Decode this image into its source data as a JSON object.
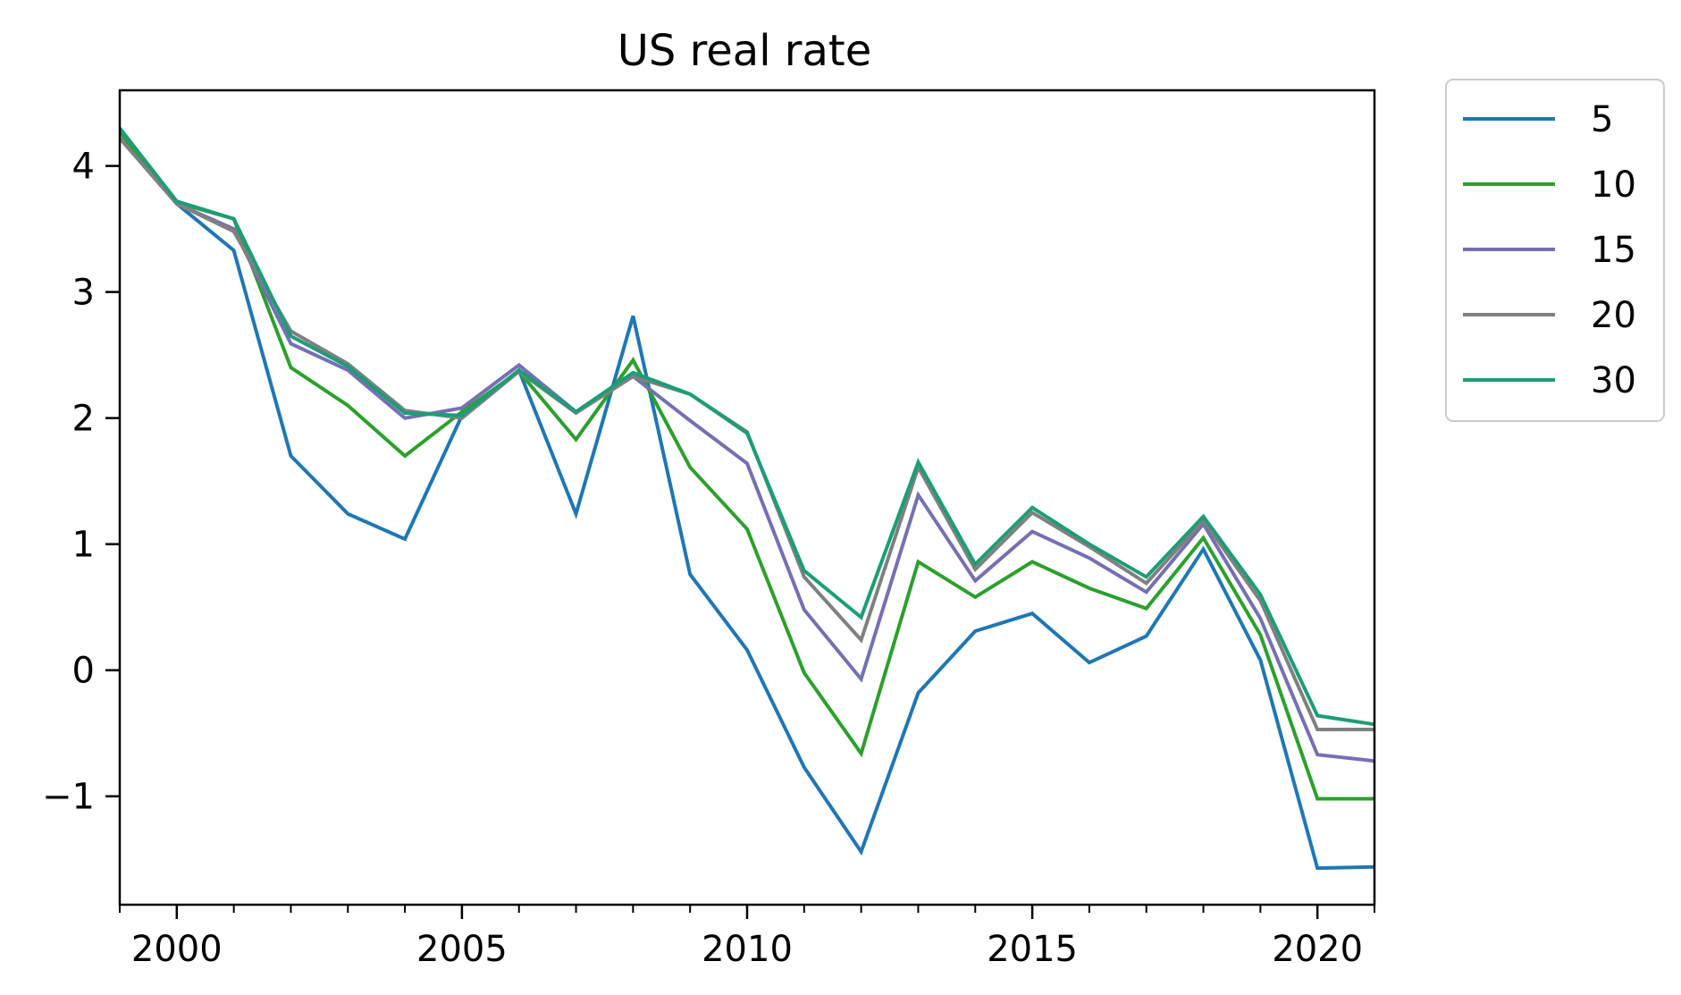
{
  "chart_data": {
    "type": "line",
    "title": "US real rate",
    "xlabel": "",
    "ylabel": "",
    "xlim": [
      1999,
      2021
    ],
    "ylim": [
      -1.86,
      4.6
    ],
    "x_ticks": [
      2000,
      2005,
      2010,
      2015,
      2020
    ],
    "x_minor_ticks": [
      1999,
      2001,
      2002,
      2003,
      2004,
      2006,
      2007,
      2008,
      2009,
      2011,
      2012,
      2013,
      2014,
      2016,
      2017,
      2018,
      2019,
      2021
    ],
    "y_ticks": [
      4,
      3,
      2,
      1,
      0,
      -1
    ],
    "y_tick_labels": [
      "4",
      "3",
      "2",
      "1",
      "0",
      "−1"
    ],
    "x_tick_labels": [
      "2000",
      "2005",
      "2010",
      "2015",
      "2020"
    ],
    "grid": false,
    "legend_position": "outside-right-top",
    "x": [
      1999,
      2000,
      2001,
      2002,
      2003,
      2004,
      2005,
      2006,
      2007,
      2008,
      2009,
      2010,
      2011,
      2012,
      2013,
      2014,
      2015,
      2016,
      2017,
      2018,
      2019,
      2020,
      2021
    ],
    "series": [
      {
        "name": "5",
        "color": "#1f77b4",
        "values": [
          4.27,
          3.7,
          3.33,
          1.7,
          1.24,
          1.04,
          2.02,
          2.38,
          1.24,
          2.81,
          0.76,
          0.16,
          -0.77,
          -1.44,
          -0.18,
          0.31,
          0.45,
          0.06,
          0.27,
          0.96,
          0.08,
          -1.57,
          -1.56
        ]
      },
      {
        "name": "10",
        "color": "#2ca02c",
        "values": [
          4.27,
          3.71,
          3.58,
          2.4,
          2.1,
          1.7,
          2.05,
          2.37,
          1.83,
          2.46,
          1.61,
          1.12,
          -0.02,
          -0.66,
          0.86,
          0.58,
          0.86,
          0.65,
          0.49,
          1.05,
          0.28,
          -1.02,
          -1.02
        ]
      },
      {
        "name": "15",
        "color": "#7570b3",
        "values": [
          4.22,
          3.7,
          3.5,
          2.59,
          2.38,
          2.0,
          2.08,
          2.42,
          2.05,
          2.33,
          1.98,
          1.64,
          0.48,
          -0.07,
          1.39,
          0.71,
          1.1,
          0.89,
          0.62,
          1.16,
          0.41,
          -0.67,
          -0.72
        ]
      },
      {
        "name": "20",
        "color": "#808080",
        "values": [
          4.22,
          3.7,
          3.48,
          2.69,
          2.43,
          2.06,
          2.0,
          2.37,
          2.04,
          2.33,
          2.19,
          1.89,
          0.74,
          0.24,
          1.61,
          0.8,
          1.25,
          0.98,
          0.69,
          1.19,
          0.55,
          -0.47,
          -0.47
        ]
      },
      {
        "name": "30",
        "color": "#1b9e77",
        "values": [
          4.3,
          3.72,
          3.58,
          2.65,
          2.41,
          2.04,
          2.02,
          2.38,
          2.05,
          2.36,
          2.19,
          1.88,
          0.79,
          0.42,
          1.65,
          0.84,
          1.29,
          1.0,
          0.74,
          1.22,
          0.6,
          -0.36,
          -0.43
        ]
      }
    ]
  }
}
